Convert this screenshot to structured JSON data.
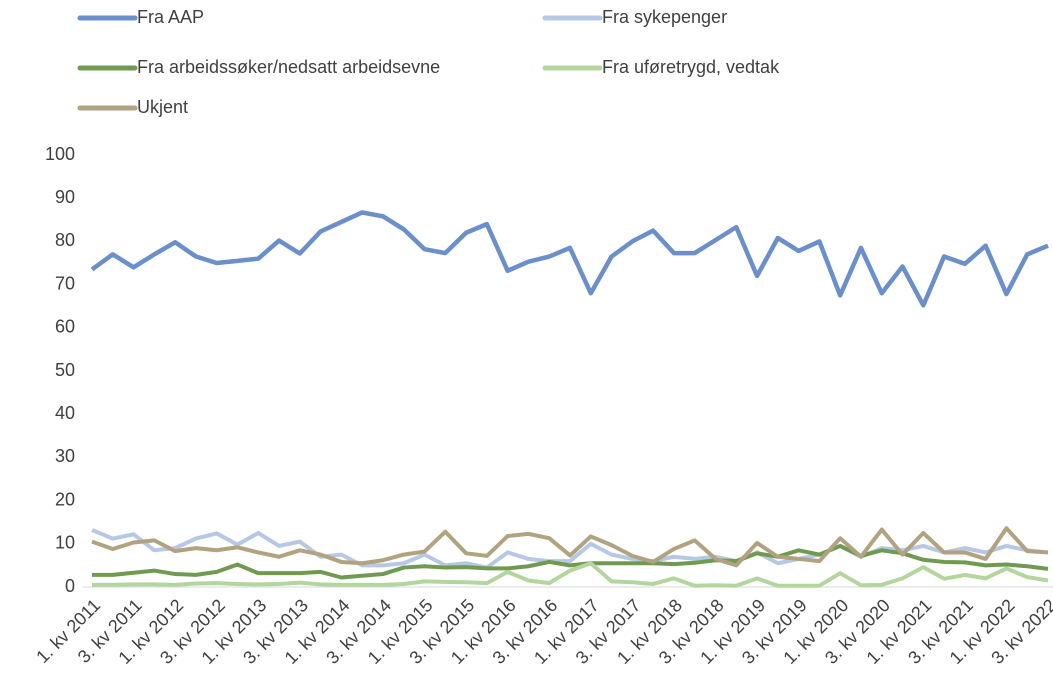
{
  "chart_data": {
    "type": "line",
    "categories": [
      "1. kv 2011",
      null,
      "3. kv 2011",
      null,
      "1. kv 2012",
      null,
      "3. kv 2012",
      null,
      "1. kv 2013",
      null,
      "3. kv 2013",
      null,
      "1. kv 2014",
      null,
      "3. kv 2014",
      null,
      "1. kv 2015",
      null,
      "3. kv 2015",
      null,
      "1. kv 2016",
      null,
      "3. kv 2016",
      null,
      "1. kv 2017",
      null,
      "3. kv 2017",
      null,
      "1. kv 2018",
      null,
      "3. kv 2018",
      null,
      "1. kv 2019",
      null,
      "3. kv 2019",
      null,
      "1. kv 2020",
      null,
      "3. kv 2020",
      null,
      "1. kv 2021",
      null,
      "3. kv 2021",
      null,
      "1. kv 2022",
      null,
      "3. kv 2022"
    ],
    "series": [
      {
        "name": "Fra AAP",
        "color": "#6a8fca",
        "values": [
          73.5,
          77,
          74,
          77,
          79.8,
          76.5,
          75,
          75.5,
          76,
          80.2,
          77.2,
          82.3,
          84.5,
          86.7,
          85.8,
          82.8,
          78.2,
          77.3,
          82,
          84,
          73.2,
          75.3,
          76.5,
          78.5,
          68,
          76.5,
          80,
          82.5,
          77.3,
          77.3,
          80.3,
          83.3,
          72,
          80.8,
          77.8,
          80,
          67.5,
          78.5,
          68,
          74.2,
          65.2,
          76.5,
          74.8,
          79,
          67.8,
          77,
          79
        ]
      },
      {
        "name": "Fra sykepenger",
        "color": "#b7c7e6",
        "values": [
          13.2,
          11.2,
          12.2,
          8.5,
          9,
          11.2,
          12.4,
          9.8,
          12.5,
          9.5,
          10.5,
          7,
          7.5,
          5,
          5,
          5.5,
          7.5,
          5,
          5.5,
          4.5,
          8,
          6.5,
          6,
          6,
          10,
          7.5,
          6.5,
          6,
          7,
          6.5,
          7,
          6,
          8,
          5.5,
          6.5,
          7.5,
          9.5,
          7,
          9,
          8.5,
          9.5,
          8,
          9,
          8,
          9.5,
          8.5,
          8
        ]
      },
      {
        "name": "Fra arbeidssøker/nedsatt arbeidsevne",
        "color": "#6f9a50",
        "values": [
          2.8,
          2.8,
          3.3,
          3.8,
          3,
          2.8,
          3.5,
          5.2,
          3.2,
          3.2,
          3.2,
          3.5,
          2.2,
          2.6,
          3,
          4.5,
          4.8,
          4.5,
          4.6,
          4.3,
          4.3,
          4.8,
          5.8,
          5,
          5.5,
          5.5,
          5.5,
          5.5,
          5.3,
          5.6,
          6.2,
          6,
          7.8,
          7,
          8.5,
          7.5,
          9.5,
          7.2,
          8.5,
          7.8,
          6.3,
          5.8,
          5.7,
          5,
          5.2,
          4.8,
          4.2
        ]
      },
      {
        "name": "Fra uføretrygd, vedtak",
        "color": "#b5d59f",
        "values": [
          0.5,
          0.5,
          0.6,
          0.6,
          0.5,
          0.8,
          0.9,
          0.7,
          0.6,
          0.7,
          1,
          0.6,
          0.5,
          0.5,
          0.5,
          0.7,
          1.3,
          1.2,
          1.1,
          0.9,
          3.5,
          1.5,
          0.9,
          3.8,
          5.5,
          1.3,
          1.1,
          0.7,
          2,
          0.3,
          0.4,
          0.3,
          2,
          0.3,
          0.3,
          0.3,
          3.2,
          0.4,
          0.5,
          2,
          4.6,
          1.9,
          2.8,
          2,
          4.3,
          2.3,
          1.5
        ]
      },
      {
        "name": "Ukjent",
        "color": "#b1a280",
        "values": [
          10.5,
          8.8,
          10.3,
          10.8,
          8.3,
          9,
          8.5,
          9.2,
          8,
          7,
          8.5,
          7.5,
          5.8,
          5.5,
          6.2,
          7.5,
          8.2,
          12.8,
          7.8,
          7.2,
          11.8,
          12.3,
          11.3,
          7.3,
          11.7,
          9.7,
          7.2,
          5.8,
          8.8,
          10.8,
          6.5,
          5,
          10.2,
          7,
          6.5,
          6,
          11.3,
          7,
          13.3,
          7.5,
          12.5,
          8,
          8,
          6.5,
          13.6,
          8.3,
          8
        ]
      }
    ],
    "ylim": [
      0,
      100
    ],
    "yticks": [
      0,
      10,
      20,
      30,
      40,
      50,
      60,
      70,
      80,
      90,
      100
    ],
    "grid": false,
    "legend": "top"
  }
}
